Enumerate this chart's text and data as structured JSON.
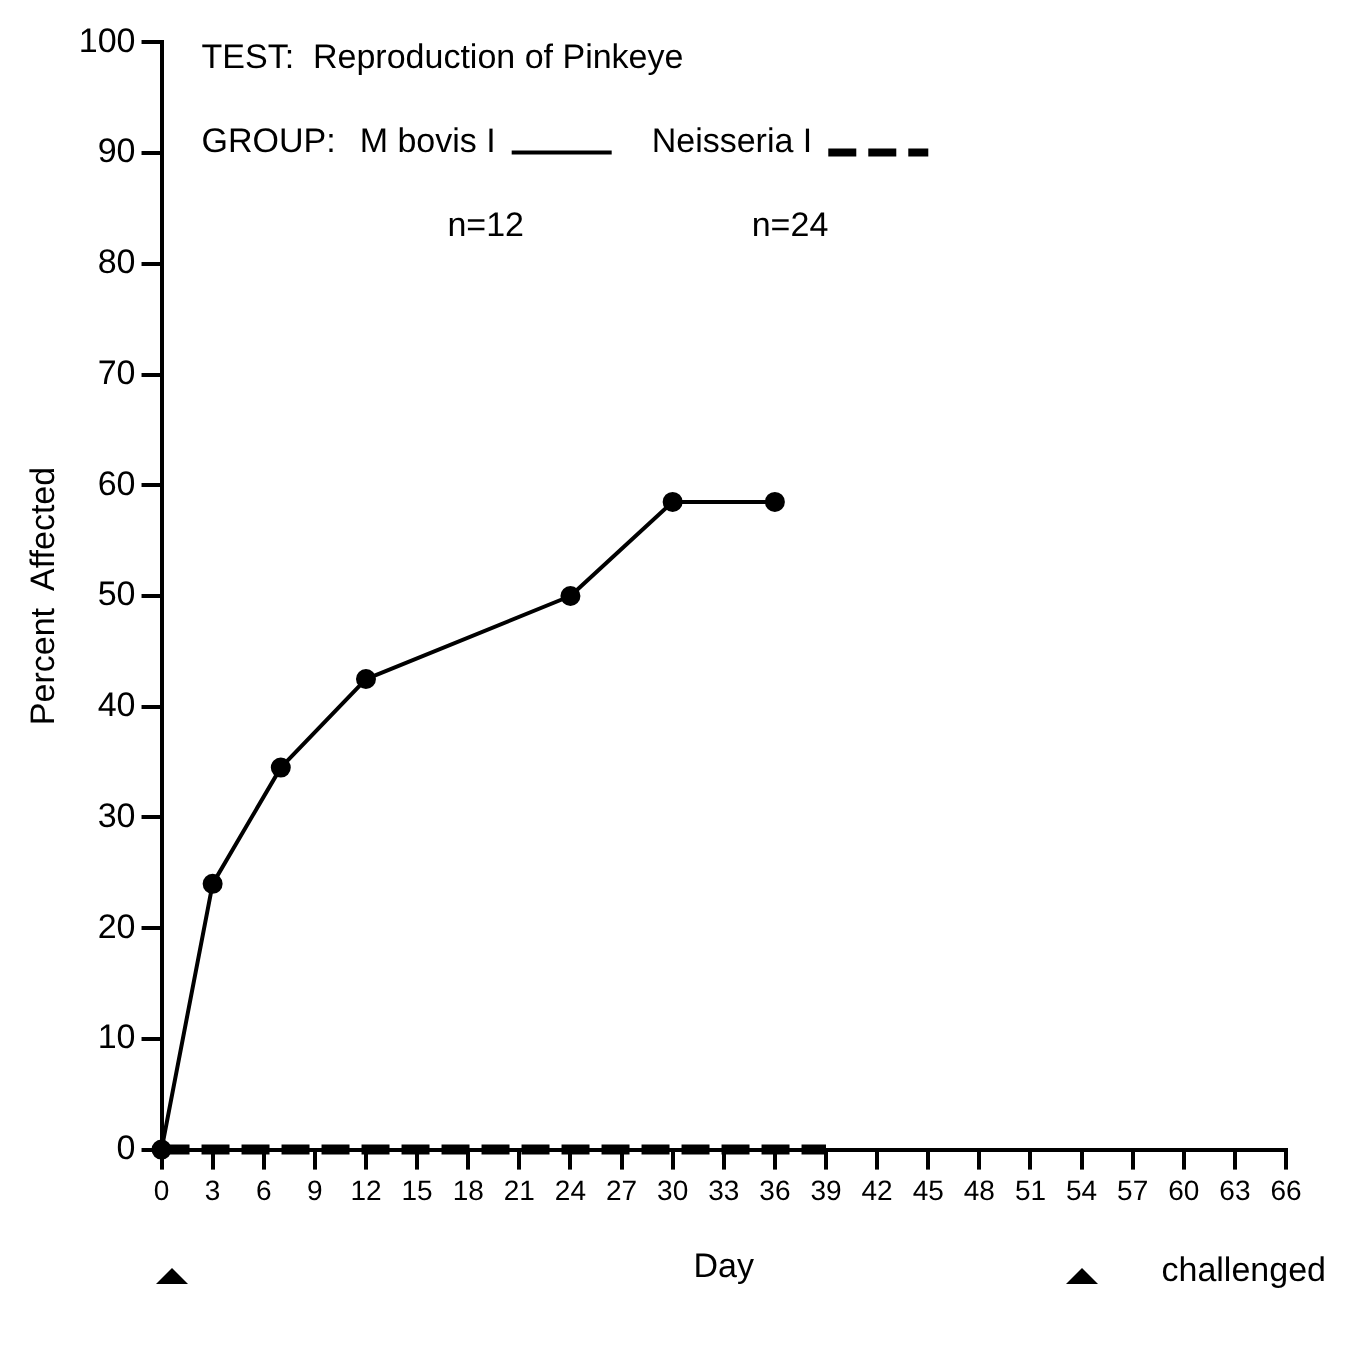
{
  "chart_data": {
    "type": "line",
    "title": "TEST:  Reproduction of Pinkeye",
    "legend_title": "GROUP:",
    "xlabel": "Day",
    "ylabel": "Percent  Affected",
    "xlim": [
      0,
      66
    ],
    "xticks": [
      0,
      3,
      6,
      9,
      12,
      15,
      18,
      21,
      24,
      27,
      30,
      33,
      36,
      39,
      42,
      45,
      48,
      51,
      54,
      57,
      60,
      63,
      66
    ],
    "ylim": [
      0,
      100
    ],
    "yticks": [
      0,
      10,
      20,
      30,
      40,
      50,
      60,
      70,
      80,
      90,
      100
    ],
    "grid": false,
    "legend": "top left",
    "series": [
      {
        "name": "M bovis I",
        "color": "#000000",
        "x": [
          0,
          3,
          7,
          12,
          24,
          30,
          36
        ],
        "values": [
          0,
          24,
          34.5,
          42.5,
          50,
          58.5,
          58.5
        ],
        "marker": "circle",
        "line_style": "solid"
      },
      {
        "name": "Neisseria I",
        "color": "#000000",
        "x": [
          0,
          39
        ],
        "values": [
          0,
          0
        ],
        "marker": "none",
        "line_style": "dashed"
      }
    ],
    "annotations": [
      "n=12",
      "n=24",
      "challenged"
    ]
  }
}
